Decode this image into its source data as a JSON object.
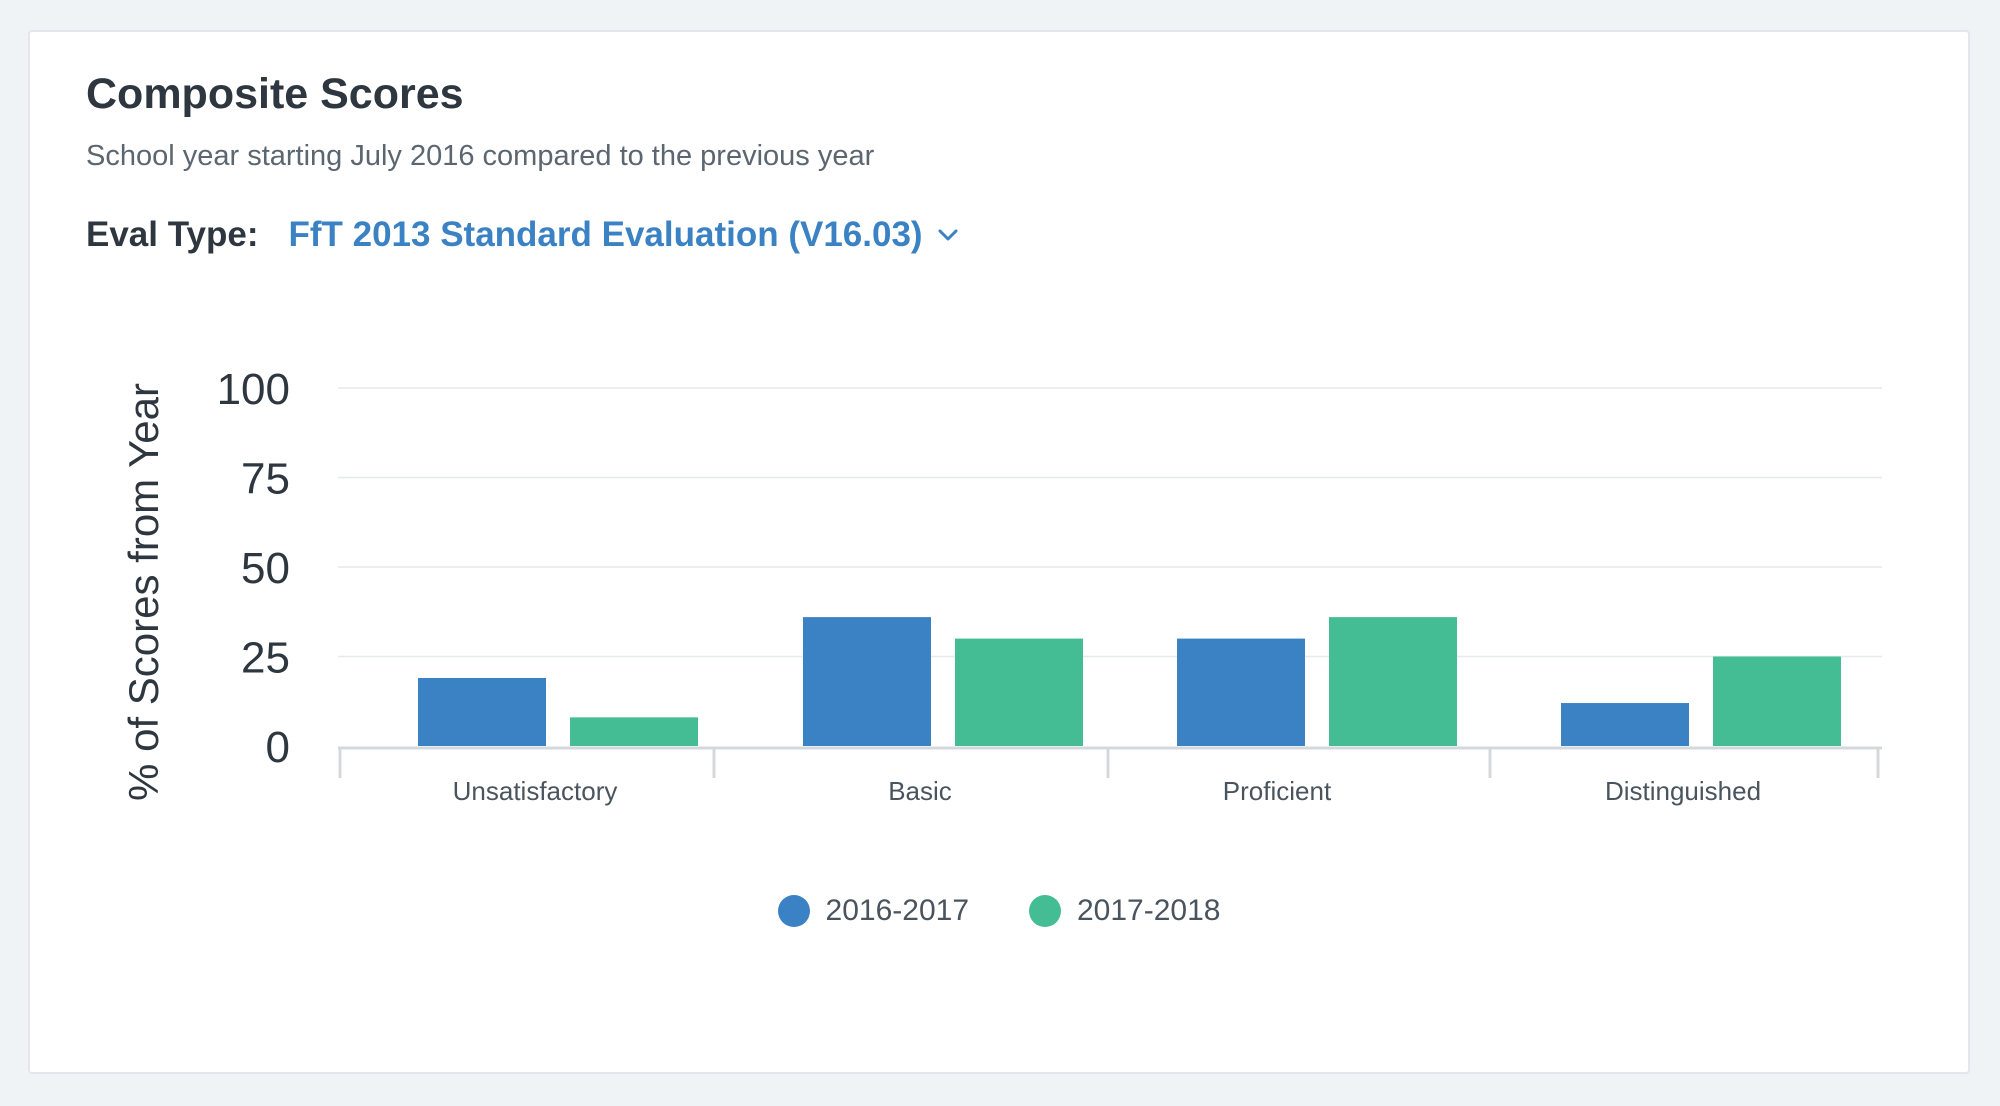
{
  "card": {
    "title": "Composite Scores",
    "subtitle": "School year starting July 2016 compared to the previous year",
    "eval_label": "Eval Type:",
    "eval_value": "FfT 2013 Standard Evaluation (V16.03)",
    "eval_icon": "chevron-down-icon"
  },
  "colors": {
    "series_2016_2017": "#3a82c4",
    "series_2017_2018": "#45bd94",
    "gridline": "#e6e9ed",
    "axis": "#d4d8dd"
  },
  "chart_data": {
    "type": "bar",
    "ylabel": "% of Scores from Year",
    "xlabel": "",
    "ylim": [
      0,
      100
    ],
    "yticks": [
      0,
      25,
      50,
      75,
      100
    ],
    "categories": [
      "Unsatisfactory",
      "Basic",
      "Proficient",
      "Distinguished"
    ],
    "series": [
      {
        "name": "2016-2017",
        "color": "#3a82c4",
        "values": [
          19,
          36,
          30,
          12
        ]
      },
      {
        "name": "2017-2018",
        "color": "#45bd94",
        "values": [
          8,
          30,
          36,
          25
        ]
      }
    ],
    "grid": true,
    "legend_position": "bottom-center"
  }
}
